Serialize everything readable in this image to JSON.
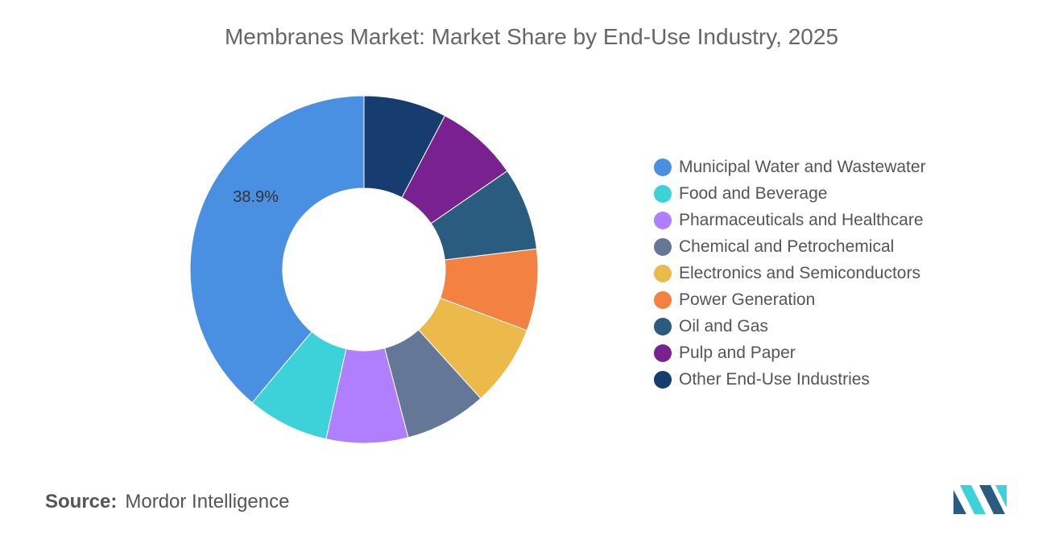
{
  "chart_data": {
    "type": "pie",
    "title": "Membranes Market: Market Share by End-Use Industry, 2025",
    "donut": true,
    "legend_position": "right",
    "slices": [
      {
        "label": "Municipal Water and Wastewater",
        "value": 38.9,
        "color": "#4A90E2",
        "data_label": "38.9%"
      },
      {
        "label": "Food and Beverage",
        "value": 7.6,
        "color": "#3DD1D9"
      },
      {
        "label": "Pharmaceuticals and Healthcare",
        "value": 7.6,
        "color": "#B07FFF"
      },
      {
        "label": "Chemical and Petrochemical",
        "value": 7.6,
        "color": "#647797"
      },
      {
        "label": "Electronics and Semiconductors",
        "value": 7.6,
        "color": "#ECB94B"
      },
      {
        "label": "Power Generation",
        "value": 7.6,
        "color": "#F38141"
      },
      {
        "label": "Oil and Gas",
        "value": 7.7,
        "color": "#2A5C80"
      },
      {
        "label": "Pulp and Paper",
        "value": 7.7,
        "color": "#7A2192"
      },
      {
        "label": "Other End-Use Industries",
        "value": 7.7,
        "color": "#173D70"
      }
    ]
  },
  "source": {
    "prefix": "Source:",
    "name": "Mordor Intelligence"
  },
  "logo": {
    "name": "mordor-intelligence-logo",
    "colors": [
      "#2A5C80",
      "#3DD1D9"
    ]
  }
}
